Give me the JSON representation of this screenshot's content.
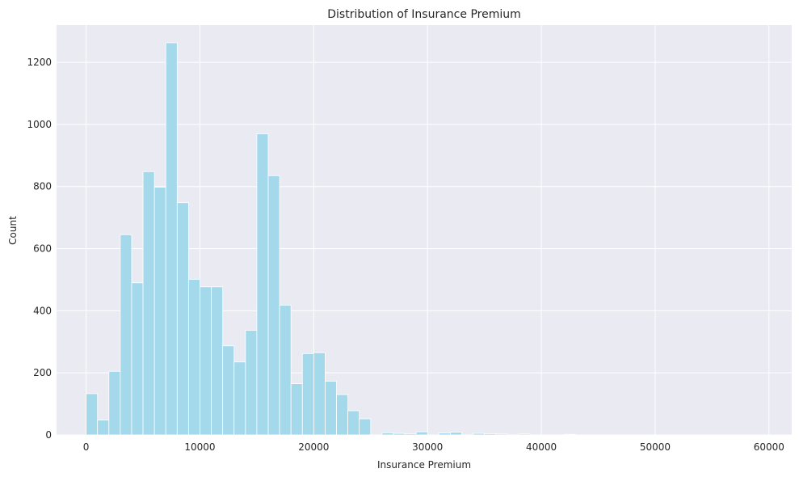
{
  "chart_data": {
    "type": "bar",
    "title": "Distribution of Insurance Premium",
    "xlabel": "Insurance Premium",
    "ylabel": "Count",
    "xlim": [
      -2600,
      62000
    ],
    "ylim": [
      0,
      1320
    ],
    "xticks": [
      0,
      10000,
      20000,
      30000,
      40000,
      50000,
      60000
    ],
    "yticks": [
      0,
      200,
      400,
      600,
      800,
      1000,
      1200
    ],
    "grid": true,
    "legend": "none",
    "bin_start": 0,
    "bin_width": 1000,
    "counts": [
      133,
      48,
      205,
      645,
      490,
      848,
      798,
      1263,
      748,
      501,
      477,
      477,
      287,
      235,
      337,
      970,
      835,
      418,
      165,
      262,
      265,
      173,
      130,
      78,
      52,
      0,
      7,
      5,
      4,
      10,
      0,
      6,
      9,
      0,
      5,
      4,
      3,
      0,
      3,
      0,
      0,
      0,
      2,
      0,
      0,
      0,
      0,
      0,
      0,
      0,
      0,
      0,
      0,
      0,
      0,
      0,
      0,
      0,
      0,
      0
    ],
    "colors": {
      "bar_fill": "#a4d8eb",
      "bar_edge": "#ffffff",
      "plot_bg": "#eaeaf2",
      "grid": "#ffffff",
      "text": "#262626"
    }
  }
}
